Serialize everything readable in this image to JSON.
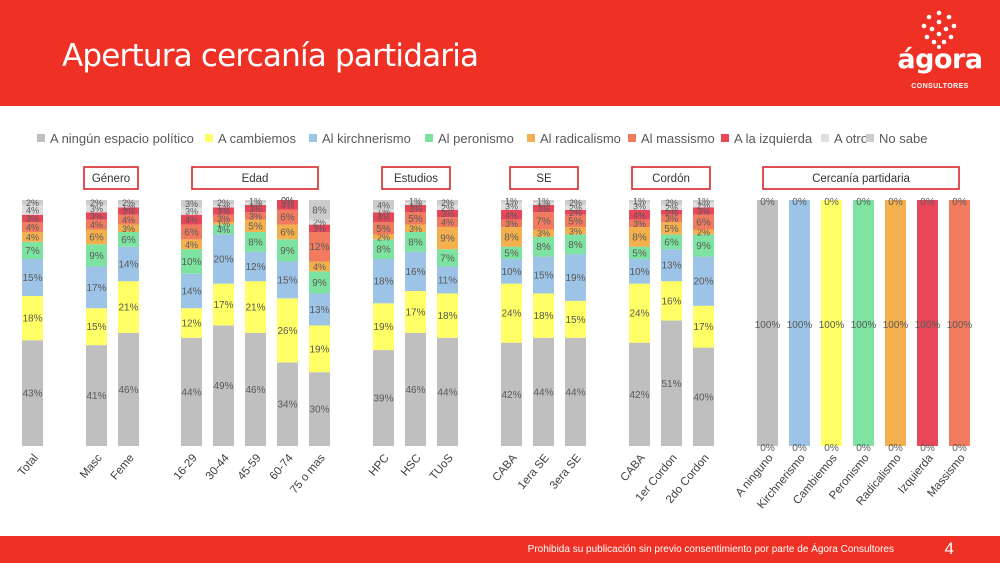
{
  "slide": {
    "title": "Apertura cercanía partidaria",
    "logo": {
      "name": "ágora",
      "subtitle": "CONSULTORES"
    },
    "footer": {
      "text": "Prohibida su publicación sin previo consentimiento por parte de Ágora Consultores",
      "page": "4"
    }
  },
  "colors": {
    "header": "#ee3124",
    "A ningún espacio político": "#bfbfbf",
    "A cambiemos": "#ffff66",
    "Al kirchnerismo": "#9dc3e6",
    "Al peronismo": "#7ee3a1",
    "Al radicalismo": "#f4b04e",
    "Al massismo": "#f07b5f",
    "A la izquierda": "#e8475a",
    "A otro": "#dedede",
    "No sabe": "#cccccc"
  },
  "chart_data": {
    "type": "bar",
    "stacked": true,
    "legend_position": "top",
    "series_names": [
      "A ningún espacio político",
      "A cambiemos",
      "Al kirchnerismo",
      "Al peronismo",
      "Al radicalismo",
      "Al massismo",
      "A la izquierda",
      "A otro",
      "No sabe"
    ],
    "groups": [
      {
        "label": "",
        "categories": [
          "Total"
        ]
      },
      {
        "label": "Género",
        "categories": [
          "Masc",
          "Feme"
        ]
      },
      {
        "label": "Edad",
        "categories": [
          "16-29",
          "30-44",
          "45-59",
          "60-74",
          "75 o mas"
        ]
      },
      {
        "label": "Estudios",
        "categories": [
          "HPC",
          "HSC",
          "TUoS"
        ]
      },
      {
        "label": "SE",
        "categories": [
          "CABA",
          "1era SE",
          "3era SE"
        ]
      },
      {
        "label": "Cordón",
        "categories": [
          "CABA",
          "1er Cordon",
          "2do Cordon"
        ]
      },
      {
        "label": "Cercanía partidaria",
        "categories": [
          "A ninguno",
          "Kirchnerismo",
          "Cambiemos",
          "Peronismo",
          "Radicalismo",
          "Izquierda",
          "Massismo"
        ]
      }
    ],
    "bars": [
      {
        "category": "Total",
        "values": [
          43,
          18,
          15,
          7,
          4,
          4,
          3,
          4,
          2
        ]
      },
      {
        "category": "Masc",
        "values": [
          41,
          15,
          17,
          9,
          6,
          4,
          3,
          3,
          2
        ]
      },
      {
        "category": "Feme",
        "values": [
          46,
          21,
          14,
          6,
          3,
          4,
          3,
          1,
          2
        ]
      },
      {
        "category": "16-29",
        "values": [
          44,
          12,
          14,
          10,
          4,
          6,
          4,
          3,
          3
        ]
      },
      {
        "category": "30-44",
        "values": [
          49,
          17,
          20,
          4,
          1,
          3,
          3,
          1,
          2
        ]
      },
      {
        "category": "45-59",
        "values": [
          46,
          21,
          12,
          8,
          5,
          3,
          3,
          1,
          1
        ]
      },
      {
        "category": "60-74",
        "values": [
          34,
          26,
          15,
          9,
          6,
          6,
          4,
          0,
          0
        ]
      },
      {
        "category": "75 o mas",
        "values": [
          30,
          19,
          13,
          9,
          4,
          12,
          3,
          2,
          8
        ]
      },
      {
        "category": "HPC",
        "values": [
          39,
          19,
          18,
          8,
          2,
          5,
          4,
          1,
          4
        ]
      },
      {
        "category": "HSC",
        "values": [
          46,
          17,
          16,
          8,
          3,
          5,
          3,
          1,
          1
        ]
      },
      {
        "category": "TUoS",
        "values": [
          44,
          18,
          11,
          7,
          9,
          4,
          3,
          2,
          2
        ]
      },
      {
        "category": "CABA",
        "values": [
          42,
          24,
          10,
          5,
          8,
          3,
          4,
          3,
          1
        ]
      },
      {
        "category": "1era SE",
        "values": [
          44,
          18,
          15,
          8,
          3,
          7,
          3,
          1,
          1
        ]
      },
      {
        "category": "3era SE",
        "values": [
          44,
          15,
          19,
          8,
          3,
          5,
          2,
          2,
          2
        ]
      },
      {
        "category": "CABA",
        "values": [
          42,
          24,
          10,
          5,
          8,
          3,
          4,
          3,
          1
        ]
      },
      {
        "category": "1er Cordon",
        "values": [
          51,
          16,
          13,
          6,
          5,
          3,
          2,
          2,
          2
        ]
      },
      {
        "category": "2do Cordon",
        "values": [
          40,
          17,
          20,
          9,
          2,
          6,
          3,
          2,
          1
        ]
      },
      {
        "category": "A ninguno",
        "values": [
          100,
          0,
          0,
          0,
          0,
          0,
          0,
          0,
          0
        ]
      },
      {
        "category": "Kirchnerismo",
        "values": [
          0,
          0,
          100,
          0,
          0,
          0,
          0,
          0,
          0
        ]
      },
      {
        "category": "Cambiemos",
        "values": [
          0,
          100,
          0,
          0,
          0,
          0,
          0,
          0,
          0
        ]
      },
      {
        "category": "Peronismo",
        "values": [
          0,
          0,
          0,
          100,
          0,
          0,
          0,
          0,
          0
        ]
      },
      {
        "category": "Radicalismo",
        "values": [
          0,
          0,
          0,
          0,
          100,
          0,
          0,
          0,
          0
        ]
      },
      {
        "category": "Izquierda",
        "values": [
          0,
          0,
          0,
          0,
          0,
          0,
          100,
          0,
          0
        ]
      },
      {
        "category": "Massismo",
        "values": [
          0,
          0,
          0,
          0,
          0,
          100,
          0,
          0,
          0
        ]
      }
    ],
    "ylim": [
      0,
      100
    ],
    "value_suffix": "%"
  }
}
